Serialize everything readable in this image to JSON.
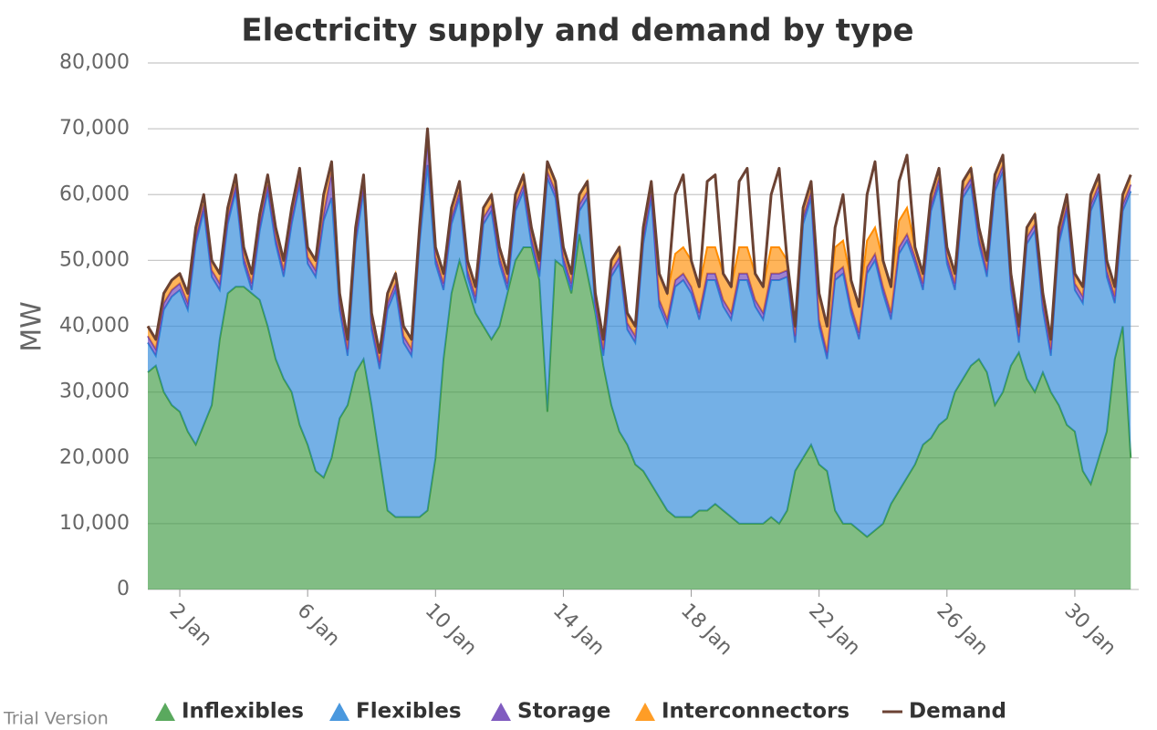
{
  "chart_data": {
    "type": "area",
    "title": "Electricity supply and demand by type",
    "y_label": "MW",
    "watermark": "Trial Version",
    "xlim": [
      1,
      32
    ],
    "xticks": [
      {
        "value": 2,
        "label": "2 Jan"
      },
      {
        "value": 6,
        "label": "6 Jan"
      },
      {
        "value": 10,
        "label": "10 Jan"
      },
      {
        "value": 14,
        "label": "14 Jan"
      },
      {
        "value": 18,
        "label": "18 Jan"
      },
      {
        "value": 22,
        "label": "22 Jan"
      },
      {
        "value": 26,
        "label": "26 Jan"
      },
      {
        "value": 30,
        "label": "30 Jan"
      }
    ],
    "ylim": [
      0,
      80000
    ],
    "yticks": [
      0,
      {
        "value": 10000,
        "label": "10,000"
      },
      {
        "value": 20000,
        "label": "20,000"
      },
      {
        "value": 30000,
        "label": "30,000"
      },
      {
        "value": 40000,
        "label": "40,000"
      },
      {
        "value": 50000,
        "label": "50,000"
      },
      {
        "value": 60000,
        "label": "60,000"
      },
      {
        "value": 70000,
        "label": "70,000"
      },
      {
        "value": 80000,
        "label": "80,000"
      }
    ],
    "grid": true,
    "x": [
      1,
      1.25,
      1.5,
      1.75,
      2,
      2.25,
      2.5,
      2.75,
      3,
      3.25,
      3.5,
      3.75,
      4,
      4.25,
      4.5,
      4.75,
      5,
      5.25,
      5.5,
      5.75,
      6,
      6.25,
      6.5,
      6.75,
      7,
      7.25,
      7.5,
      7.75,
      8,
      8.25,
      8.5,
      8.75,
      9,
      9.25,
      9.5,
      9.75,
      10,
      10.25,
      10.5,
      10.75,
      11,
      11.25,
      11.5,
      11.75,
      12,
      12.25,
      12.5,
      12.75,
      13,
      13.25,
      13.5,
      13.75,
      14,
      14.25,
      14.5,
      14.75,
      15,
      15.25,
      15.5,
      15.75,
      16,
      16.25,
      16.5,
      16.75,
      17,
      17.25,
      17.5,
      17.75,
      18,
      18.25,
      18.5,
      18.75,
      19,
      19.25,
      19.5,
      19.75,
      20,
      20.25,
      20.5,
      20.75,
      21,
      21.25,
      21.5,
      21.75,
      22,
      22.25,
      22.5,
      22.75,
      23,
      23.25,
      23.5,
      23.75,
      24,
      24.25,
      24.5,
      24.75,
      25,
      25.25,
      25.5,
      25.75,
      26,
      26.25,
      26.5,
      26.75,
      27,
      27.25,
      27.5,
      27.75,
      28,
      28.25,
      28.5,
      28.75,
      29,
      29.25,
      29.5,
      29.75,
      30,
      30.25,
      30.5,
      30.75,
      31,
      31.25,
      31.5,
      31.75
    ],
    "series": [
      {
        "name": "Inflexibles",
        "type": "area",
        "color": "#3d9a42",
        "values": [
          33000,
          34000,
          30000,
          28000,
          27000,
          24000,
          22000,
          25000,
          28000,
          38000,
          45000,
          46000,
          46000,
          45000,
          44000,
          40000,
          35000,
          32000,
          30000,
          25000,
          22000,
          18000,
          17000,
          20000,
          26000,
          28000,
          33000,
          35000,
          28000,
          20000,
          12000,
          11000,
          11000,
          11000,
          11000,
          12000,
          20000,
          35000,
          45000,
          50000,
          46000,
          42000,
          40000,
          38000,
          40000,
          45000,
          50000,
          52000,
          52000,
          47000,
          27000,
          50000,
          49000,
          45000,
          54000,
          48000,
          42000,
          34000,
          28000,
          24000,
          22000,
          19000,
          18000,
          16000,
          14000,
          12000,
          11000,
          11000,
          11000,
          12000,
          12000,
          13000,
          12000,
          11000,
          10000,
          10000,
          10000,
          10000,
          11000,
          10000,
          12000,
          18000,
          20000,
          22000,
          19000,
          18000,
          12000,
          10000,
          10000,
          9000,
          8000,
          9000,
          10000,
          13000,
          15000,
          17000,
          19000,
          22000,
          23000,
          25000,
          26000,
          30000,
          32000,
          34000,
          35000,
          33000,
          28000,
          30000,
          34000,
          36000,
          32000,
          30000,
          33000,
          30000,
          28000,
          25000,
          24000,
          18000,
          16000,
          20000,
          24000,
          35000,
          40000,
          20000
        ]
      },
      {
        "name": "Flexibles",
        "type": "area",
        "color": "#2a86d8",
        "values": [
          4500,
          1500,
          12500,
          16500,
          18500,
          18500,
          30500,
          32500,
          19500,
          7500,
          10500,
          14500,
          3500,
          500,
          10500,
          20500,
          17500,
          15500,
          25500,
          36500,
          27500,
          29500,
          39000,
          39500,
          16500,
          7500,
          19500,
          25500,
          11500,
          13500,
          30500,
          34500,
          26500,
          24500,
          41500,
          52500,
          29500,
          10500,
          10500,
          9500,
          1500,
          1500,
          15500,
          19500,
          9500,
          500,
          7500,
          8500,
          500,
          500,
          35500,
          9500,
          500,
          500,
          3500,
          11500,
          500,
          1500,
          19500,
          25500,
          17500,
          18500,
          34500,
          43500,
          29000,
          28000,
          35000,
          36000,
          34000,
          29000,
          35000,
          34000,
          31000,
          30000,
          37000,
          37000,
          33000,
          31000,
          36000,
          37000,
          35500,
          19500,
          35500,
          37500,
          21000,
          17000,
          35000,
          38000,
          32000,
          29000,
          40000,
          41000,
          35000,
          28000,
          36000,
          36000,
          30500,
          23500,
          34500,
          36500,
          23500,
          15500,
          27500,
          27500,
          17500,
          14500,
          32500,
          33500,
          11500,
          1500,
          20500,
          24500,
          9500,
          5500,
          24500,
          32500,
          21500,
          25500,
          41500,
          40500,
          23500,
          8500,
          17500,
          40500
        ]
      },
      {
        "name": "Storage",
        "type": "area",
        "color": "#6a3fb5",
        "values": [
          1000,
          1000,
          1000,
          1000,
          1000,
          1000,
          1000,
          1000,
          1000,
          1000,
          1000,
          1000,
          1000,
          1000,
          1000,
          1000,
          1000,
          1000,
          1000,
          1000,
          1000,
          1000,
          1000,
          4000,
          1000,
          1000,
          1000,
          1000,
          1000,
          1000,
          1000,
          1000,
          1000,
          1000,
          1000,
          4000,
          1000,
          1000,
          1000,
          1000,
          1000,
          1000,
          1000,
          1000,
          1000,
          1000,
          1000,
          1000,
          1000,
          1000,
          1000,
          1000,
          1000,
          1000,
          1000,
          1000,
          1000,
          1000,
          1000,
          1000,
          1000,
          1000,
          1000,
          1000,
          1000,
          1000,
          1000,
          1000,
          1000,
          1000,
          1000,
          1000,
          1000,
          1000,
          1000,
          1000,
          1000,
          1000,
          1000,
          1000,
          1000,
          1000,
          1000,
          1000,
          1000,
          1000,
          1000,
          1000,
          1000,
          1000,
          1000,
          1000,
          1000,
          1000,
          1000,
          1000,
          1000,
          1000,
          1000,
          1000,
          1000,
          1000,
          1000,
          1000,
          1000,
          1000,
          1000,
          1000,
          1000,
          1000,
          1000,
          1000,
          1000,
          1000,
          1000,
          1000,
          1000,
          1000,
          1000,
          1000,
          1000,
          1000,
          1000,
          1000
        ]
      },
      {
        "name": "Interconnectors",
        "type": "area",
        "color": "#ff8c00",
        "values": [
          1500,
          1500,
          1500,
          1500,
          1500,
          1500,
          1500,
          1500,
          1500,
          1500,
          1500,
          1500,
          1500,
          1500,
          1500,
          1500,
          1500,
          1500,
          1500,
          1500,
          1500,
          1500,
          3000,
          1500,
          1500,
          1500,
          1500,
          1500,
          1500,
          1500,
          1500,
          1500,
          1500,
          1500,
          1500,
          1500,
          1500,
          1500,
          1500,
          1500,
          1500,
          1500,
          1500,
          1500,
          1500,
          1500,
          1500,
          1500,
          1500,
          1500,
          1500,
          1500,
          1500,
          1500,
          1500,
          1500,
          1500,
          1500,
          1500,
          1500,
          1500,
          1500,
          1500,
          1500,
          4000,
          4000,
          4000,
          4000,
          4000,
          4000,
          4000,
          4000,
          4000,
          4000,
          4000,
          4000,
          4000,
          4000,
          4000,
          4000,
          1500,
          1500,
          1500,
          1500,
          4000,
          4000,
          4000,
          4000,
          4000,
          4000,
          4000,
          4000,
          4000,
          4000,
          4000,
          4000,
          1500,
          1500,
          1500,
          1500,
          1500,
          1500,
          1500,
          1500,
          1500,
          1500,
          1500,
          1500,
          1500,
          1500,
          1500,
          1500,
          1500,
          1500,
          1500,
          1500,
          1500,
          1500,
          1500,
          1500,
          1500,
          1500,
          1500,
          1500
        ]
      },
      {
        "name": "Demand",
        "type": "line",
        "color": "#6b4233",
        "values": [
          40000,
          38000,
          45000,
          47000,
          48000,
          45000,
          55000,
          60000,
          50000,
          48000,
          58000,
          63000,
          52000,
          48000,
          57000,
          63000,
          55000,
          50000,
          58000,
          64000,
          52000,
          50000,
          60000,
          65000,
          45000,
          38000,
          55000,
          63000,
          42000,
          36000,
          45000,
          48000,
          40000,
          38000,
          55000,
          70000,
          52000,
          48000,
          58000,
          62000,
          50000,
          46000,
          58000,
          60000,
          52000,
          48000,
          60000,
          63000,
          55000,
          50000,
          65000,
          62000,
          52000,
          48000,
          60000,
          62000,
          45000,
          38000,
          50000,
          52000,
          42000,
          40000,
          55000,
          62000,
          48000,
          45000,
          60000,
          63000,
          50000,
          46000,
          62000,
          63000,
          48000,
          46000,
          62000,
          64000,
          48000,
          46000,
          60000,
          64000,
          50000,
          40000,
          58000,
          62000,
          45000,
          40000,
          55000,
          60000,
          47000,
          43000,
          60000,
          65000,
          50000,
          46000,
          62000,
          66000,
          52000,
          48000,
          60000,
          64000,
          52000,
          48000,
          62000,
          64000,
          55000,
          50000,
          63000,
          66000,
          48000,
          40000,
          55000,
          57000,
          45000,
          38000,
          55000,
          60000,
          48000,
          46000,
          60000,
          63000,
          50000,
          46000,
          60000,
          63000
        ]
      }
    ]
  }
}
